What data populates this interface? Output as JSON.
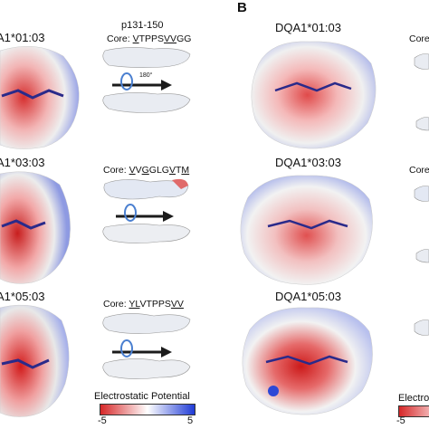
{
  "panel_b": {
    "letter": "B"
  },
  "rows": [
    {
      "left_allele": "A1*01:03",
      "peptide": "p131-150",
      "core_prefix": "Core: ",
      "core_parts": [
        {
          "t": "V",
          "u": true
        },
        {
          "t": "TPPS",
          "u": false
        },
        {
          "t": "VV",
          "u": true
        },
        {
          "t": "GG",
          "u": false
        }
      ],
      "right_allele": "DQA1*01:03",
      "right_cut_label": "Core"
    },
    {
      "left_allele": "A1*03:03",
      "peptide": "",
      "core_prefix": "Core: ",
      "core_parts": [
        {
          "t": "V",
          "u": true
        },
        {
          "t": "V",
          "u": false
        },
        {
          "t": "G",
          "u": true
        },
        {
          "t": "GLG",
          "u": false
        },
        {
          "t": "V",
          "u": true
        },
        {
          "t": "T",
          "u": false
        },
        {
          "t": "M",
          "u": true
        }
      ],
      "right_allele": "DQA1*03:03",
      "right_cut_label": "Core"
    },
    {
      "left_allele": "A1*05:03",
      "peptide": "",
      "core_prefix": "Core: ",
      "core_parts": [
        {
          "t": "YL",
          "u": true
        },
        {
          "t": "VTPPS",
          "u": false
        },
        {
          "t": "VV",
          "u": true
        }
      ],
      "right_allele": "DQA1*05:03",
      "right_cut_label": ""
    }
  ],
  "rotation_label": "180°",
  "legend": {
    "title": "Electrostatic Potential",
    "min": "-5",
    "max": "5",
    "right_partial_title": "Electros",
    "right_partial_min": "-5",
    "colors": {
      "negative": "#d62728",
      "neutral": "#ffffff",
      "positive": "#1f3bd6"
    }
  }
}
